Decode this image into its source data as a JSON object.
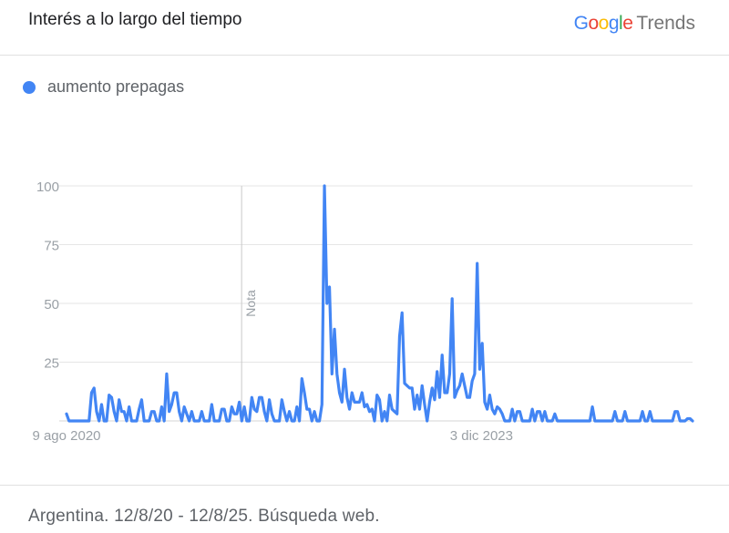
{
  "header": {
    "title": "Interés a lo largo del tiempo",
    "brand_google": "Google",
    "brand_trends": "Trends",
    "brand_colors": [
      "#4285F4",
      "#EA4335",
      "#FBBC05",
      "#4285F4",
      "#34A853",
      "#EA4335"
    ]
  },
  "footer": {
    "text": "Argentina. 12/8/20 - 12/8/25. Búsqueda web."
  },
  "chart_data": {
    "type": "line",
    "ylim": [
      0,
      100
    ],
    "yticks": [
      25,
      50,
      75,
      100
    ],
    "grid": true,
    "legend_position": "top-left",
    "x_range": [
      "2020-08-09",
      "2025-08-10"
    ],
    "xtick_labels": [
      {
        "date": "2020-08-09",
        "label": "9 ago 2020"
      },
      {
        "date": "2023-12-03",
        "label": "3 dic 2023"
      }
    ],
    "annotations": [
      {
        "date": "2022-01-02",
        "label": "Nota"
      }
    ],
    "series": [
      {
        "name": "aumento prepagas",
        "color": "#4285F4",
        "values": [
          3,
          0,
          0,
          0,
          0,
          0,
          0,
          0,
          0,
          0,
          12,
          14,
          4,
          0,
          7,
          0,
          0,
          11,
          10,
          4,
          0,
          9,
          4,
          4,
          0,
          6,
          0,
          0,
          0,
          5,
          9,
          0,
          0,
          0,
          4,
          4,
          0,
          0,
          6,
          0,
          20,
          4,
          7,
          12,
          12,
          4,
          0,
          6,
          3,
          0,
          4,
          0,
          0,
          0,
          4,
          0,
          0,
          0,
          7,
          0,
          0,
          0,
          5,
          5,
          0,
          0,
          6,
          3,
          3,
          8,
          0,
          6,
          0,
          0,
          10,
          5,
          4,
          10,
          10,
          4,
          0,
          9,
          3,
          0,
          0,
          0,
          9,
          4,
          0,
          4,
          0,
          0,
          6,
          0,
          18,
          12,
          5,
          5,
          0,
          4,
          0,
          0,
          7,
          100,
          50,
          57,
          20,
          39,
          20,
          12,
          8,
          22,
          10,
          5,
          12,
          8,
          8,
          8,
          12,
          6,
          7,
          4,
          5,
          0,
          11,
          9,
          0,
          4,
          0,
          11,
          5,
          4,
          3,
          36,
          46,
          16,
          15,
          14,
          14,
          5,
          11,
          5,
          15,
          7,
          0,
          8,
          14,
          9,
          21,
          10,
          28,
          12,
          12,
          20,
          52,
          10,
          13,
          15,
          20,
          15,
          10,
          10,
          17,
          20,
          67,
          22,
          33,
          8,
          5,
          11,
          5,
          3,
          6,
          5,
          3,
          0,
          0,
          0,
          5,
          0,
          4,
          4,
          0,
          0,
          0,
          0,
          5,
          0,
          4,
          4,
          0,
          4,
          0,
          0,
          0,
          3,
          0,
          0,
          0,
          0,
          0,
          0,
          0,
          0,
          0,
          0,
          0,
          0,
          0,
          0,
          6,
          0,
          0,
          0,
          0,
          0,
          0,
          0,
          0,
          4,
          0,
          0,
          0,
          4,
          0,
          0,
          0,
          0,
          0,
          0,
          4,
          0,
          0,
          4,
          0,
          0,
          0,
          0,
          0,
          0,
          0,
          0,
          0,
          4,
          4,
          0,
          0,
          0,
          1,
          1,
          0
        ]
      }
    ]
  }
}
